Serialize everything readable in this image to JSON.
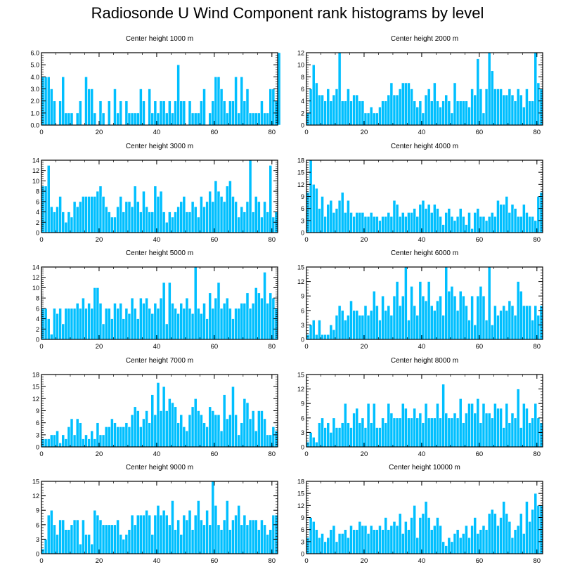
{
  "title": "Radiosonde U Wind Component rank histograms by level",
  "style": {
    "bar_color": "#00BFFF",
    "bar_edge": "#ffffff",
    "axis_color": "#000000"
  },
  "chart_data": [
    {
      "type": "bar",
      "title": "Center height 1000 m",
      "xlabel": "",
      "ylabel": "",
      "xlim": [
        0,
        82
      ],
      "ylim": [
        0,
        6
      ],
      "yticks": [
        0,
        1,
        2,
        3,
        4,
        5,
        6
      ],
      "ytick_labels": [
        "0.0",
        "1.0",
        "2.0",
        "3.0",
        "4.0",
        "5.0",
        "6.0"
      ],
      "xticks": [
        0,
        20,
        40,
        60,
        80
      ],
      "xtick_labels": [
        "0",
        "20",
        "40",
        "60",
        "80"
      ],
      "values": [
        4,
        4,
        4,
        3,
        2,
        0,
        2,
        4,
        1,
        1,
        1,
        0,
        1,
        2,
        0,
        4,
        3,
        3,
        1,
        0,
        2,
        1,
        0,
        2,
        0,
        3,
        1,
        2,
        0,
        2,
        1,
        1,
        1,
        1,
        3,
        2,
        0,
        3,
        1,
        2,
        1,
        2,
        2,
        1,
        2,
        1,
        2,
        5,
        2,
        2,
        0,
        2,
        1,
        1,
        1,
        2,
        3,
        0,
        1,
        2,
        4,
        4,
        3,
        2,
        1,
        2,
        2,
        4,
        1,
        4,
        2,
        3,
        1,
        1,
        1,
        1,
        2,
        1,
        1,
        3,
        3,
        2,
        6
      ]
    },
    {
      "type": "bar",
      "title": "Center height 2000 m",
      "xlabel": "",
      "ylabel": "",
      "xlim": [
        0,
        82
      ],
      "ylim": [
        0,
        12
      ],
      "yticks": [
        0,
        2,
        4,
        6,
        8,
        10,
        12
      ],
      "ytick_labels": [
        "0",
        "2",
        "4",
        "6",
        "8",
        "10",
        "12"
      ],
      "xticks": [
        0,
        20,
        40,
        60,
        80
      ],
      "xtick_labels": [
        "0",
        "20",
        "40",
        "60",
        "80"
      ],
      "values": [
        2,
        6,
        10,
        7,
        5,
        5,
        4,
        6,
        4,
        5,
        6,
        12,
        4,
        4,
        6,
        4,
        5,
        5,
        4,
        4,
        2,
        2,
        3,
        2,
        2,
        3,
        4,
        4,
        5,
        7,
        5,
        5,
        6,
        7,
        7,
        7,
        6,
        4,
        3,
        4,
        2,
        5,
        6,
        4,
        7,
        4,
        3,
        4,
        5,
        4,
        2,
        7,
        4,
        4,
        4,
        4,
        3,
        6,
        5,
        11,
        6,
        2,
        6,
        12,
        9,
        6,
        6,
        6,
        5,
        5,
        6,
        5,
        4,
        6,
        5,
        3,
        6,
        4,
        4,
        12,
        7,
        6
      ]
    },
    {
      "type": "bar",
      "title": "Center height 3000 m",
      "xlabel": "",
      "ylabel": "",
      "xlim": [
        0,
        82
      ],
      "ylim": [
        0,
        14
      ],
      "yticks": [
        0,
        2,
        4,
        6,
        8,
        10,
        12,
        14
      ],
      "ytick_labels": [
        "0",
        "2",
        "4",
        "6",
        "8",
        "10",
        "12",
        "14"
      ],
      "xticks": [
        0,
        20,
        40,
        60,
        80
      ],
      "xtick_labels": [
        "0",
        "20",
        "40",
        "60",
        "80"
      ],
      "values": [
        9,
        9,
        13,
        5,
        4,
        5,
        7,
        4,
        2,
        4,
        3,
        6,
        5,
        6,
        7,
        7,
        7,
        7,
        7,
        8,
        9,
        7,
        5,
        4,
        3,
        3,
        5,
        7,
        4,
        6,
        6,
        5,
        9,
        6,
        4,
        8,
        5,
        4,
        4,
        9,
        7,
        8,
        4,
        2,
        4,
        3,
        4,
        5,
        6,
        7,
        4,
        4,
        6,
        5,
        3,
        7,
        5,
        6,
        8,
        6,
        10,
        8,
        7,
        6,
        9,
        10,
        7,
        6,
        3,
        5,
        4,
        6,
        14,
        4,
        7,
        6,
        3,
        6,
        4,
        13,
        3,
        4
      ]
    },
    {
      "type": "bar",
      "title": "Center height 4000 m",
      "xlabel": "",
      "ylabel": "",
      "xlim": [
        0,
        82
      ],
      "ylim": [
        0,
        18
      ],
      "yticks": [
        0,
        3,
        6,
        9,
        12,
        15,
        18
      ],
      "ytick_labels": [
        "0",
        "3",
        "6",
        "9",
        "12",
        "15",
        "18"
      ],
      "xticks": [
        0,
        20,
        40,
        60,
        80
      ],
      "xtick_labels": [
        "0",
        "20",
        "40",
        "60",
        "80"
      ],
      "values": [
        10,
        18,
        12,
        11,
        6,
        9,
        4,
        7,
        8,
        5,
        6,
        8,
        10,
        5,
        8,
        5,
        4,
        5,
        5,
        5,
        4,
        4,
        5,
        4,
        4,
        3,
        4,
        4,
        5,
        4,
        8,
        7,
        4,
        5,
        4,
        5,
        5,
        6,
        4,
        7,
        8,
        6,
        7,
        5,
        7,
        6,
        4,
        2,
        5,
        6,
        4,
        3,
        4,
        6,
        4,
        2,
        5,
        1,
        5,
        6,
        4,
        4,
        3,
        4,
        5,
        4,
        8,
        7,
        7,
        9,
        5,
        7,
        6,
        4,
        4,
        7,
        5,
        4,
        4,
        3,
        9,
        10
      ]
    },
    {
      "type": "bar",
      "title": "Center height 5000 m",
      "xlabel": "",
      "ylabel": "",
      "xlim": [
        0,
        82
      ],
      "ylim": [
        0,
        14
      ],
      "yticks": [
        0,
        2,
        4,
        6,
        8,
        10,
        12,
        14
      ],
      "ytick_labels": [
        "0",
        "2",
        "4",
        "6",
        "8",
        "10",
        "12",
        "14"
      ],
      "xticks": [
        0,
        20,
        40,
        60,
        80
      ],
      "xtick_labels": [
        "0",
        "20",
        "40",
        "60",
        "80"
      ],
      "values": [
        6,
        6,
        4,
        1,
        6,
        5,
        6,
        3,
        6,
        6,
        6,
        6,
        7,
        6,
        8,
        6,
        7,
        6,
        10,
        10,
        7,
        3,
        6,
        6,
        4,
        7,
        6,
        7,
        4,
        6,
        5,
        8,
        6,
        4,
        8,
        7,
        8,
        6,
        5,
        7,
        6,
        8,
        11,
        3,
        11,
        7,
        6,
        5,
        7,
        6,
        8,
        6,
        5,
        14,
        6,
        5,
        7,
        4,
        9,
        6,
        8,
        11,
        6,
        7,
        8,
        6,
        4,
        6,
        6,
        7,
        7,
        9,
        6,
        7,
        10,
        9,
        8,
        13,
        7,
        9,
        8,
        6
      ]
    },
    {
      "type": "bar",
      "title": "Center height 6000 m",
      "xlabel": "",
      "ylabel": "",
      "xlim": [
        0,
        82
      ],
      "ylim": [
        0,
        15
      ],
      "yticks": [
        0,
        3,
        6,
        9,
        12,
        15
      ],
      "ytick_labels": [
        "0",
        "3",
        "6",
        "9",
        "12",
        "15"
      ],
      "xticks": [
        0,
        20,
        40,
        60,
        80
      ],
      "xtick_labels": [
        "0",
        "20",
        "40",
        "60",
        "80"
      ],
      "values": [
        1,
        3,
        4,
        1,
        4,
        1,
        1,
        1,
        3,
        2,
        5,
        7,
        6,
        4,
        5,
        8,
        6,
        6,
        5,
        5,
        7,
        5,
        6,
        10,
        7,
        4,
        9,
        6,
        7,
        5,
        9,
        12,
        7,
        9,
        15,
        4,
        11,
        7,
        5,
        12,
        9,
        8,
        12,
        7,
        6,
        8,
        9,
        5,
        15,
        10,
        11,
        9,
        6,
        10,
        9,
        7,
        4,
        9,
        3,
        9,
        11,
        9,
        4,
        15,
        3,
        7,
        5,
        6,
        7,
        6,
        8,
        7,
        5,
        12,
        10,
        7,
        7,
        7,
        4,
        7,
        5,
        7
      ]
    },
    {
      "type": "bar",
      "title": "Center height 7000 m",
      "xlabel": "",
      "ylabel": "",
      "xlim": [
        0,
        82
      ],
      "ylim": [
        0,
        18
      ],
      "yticks": [
        0,
        3,
        6,
        9,
        12,
        15,
        18
      ],
      "ytick_labels": [
        "0",
        "3",
        "6",
        "9",
        "12",
        "15",
        "18"
      ],
      "xticks": [
        0,
        20,
        40,
        60,
        80
      ],
      "xtick_labels": [
        "0",
        "20",
        "40",
        "60",
        "80"
      ],
      "values": [
        2,
        2,
        2,
        3,
        3,
        4,
        1,
        3,
        2,
        5,
        7,
        3,
        7,
        6,
        2,
        3,
        2,
        4,
        2,
        6,
        3,
        3,
        5,
        5,
        7,
        6,
        5,
        5,
        5,
        6,
        5,
        8,
        10,
        9,
        5,
        7,
        9,
        6,
        13,
        8,
        16,
        9,
        15,
        9,
        12,
        11,
        10,
        6,
        8,
        5,
        4,
        8,
        10,
        12,
        9,
        8,
        6,
        5,
        10,
        9,
        8,
        8,
        4,
        13,
        7,
        8,
        15,
        8,
        3,
        6,
        12,
        11,
        7,
        9,
        4,
        9,
        9,
        7,
        3,
        3,
        5,
        4
      ]
    },
    {
      "type": "bar",
      "title": "Center height 8000 m",
      "xlabel": "",
      "ylabel": "",
      "xlim": [
        0,
        82
      ],
      "ylim": [
        0,
        15
      ],
      "yticks": [
        0,
        3,
        6,
        9,
        12,
        15
      ],
      "ytick_labels": [
        "0",
        "3",
        "6",
        "9",
        "12",
        "15"
      ],
      "xticks": [
        0,
        20,
        40,
        60,
        80
      ],
      "xtick_labels": [
        "0",
        "20",
        "40",
        "60",
        "80"
      ],
      "values": [
        1,
        3,
        2,
        1,
        5,
        6,
        4,
        5,
        3,
        6,
        4,
        4,
        5,
        9,
        5,
        4,
        7,
        8,
        5,
        6,
        4,
        9,
        5,
        9,
        4,
        4,
        6,
        5,
        9,
        7,
        6,
        6,
        6,
        9,
        8,
        6,
        6,
        8,
        6,
        7,
        5,
        9,
        6,
        6,
        6,
        9,
        6,
        13,
        7,
        6,
        6,
        7,
        6,
        10,
        5,
        7,
        9,
        9,
        7,
        10,
        5,
        9,
        7,
        7,
        6,
        9,
        8,
        8,
        4,
        9,
        5,
        7,
        6,
        12,
        4,
        9,
        8,
        5,
        6,
        9,
        6,
        5
      ]
    },
    {
      "type": "bar",
      "title": "Center height 9000 m",
      "xlabel": "",
      "ylabel": "",
      "xlim": [
        0,
        82
      ],
      "ylim": [
        0,
        15
      ],
      "yticks": [
        0,
        3,
        6,
        9,
        12,
        15
      ],
      "ytick_labels": [
        "0",
        "3",
        "6",
        "9",
        "12",
        "15"
      ],
      "xticks": [
        0,
        20,
        40,
        60,
        80
      ],
      "xtick_labels": [
        "0",
        "20",
        "40",
        "60",
        "80"
      ],
      "values": [
        1,
        3,
        8,
        9,
        6,
        4,
        7,
        7,
        5,
        5,
        6,
        7,
        7,
        2,
        7,
        4,
        4,
        2,
        9,
        8,
        7,
        6,
        6,
        6,
        6,
        6,
        7,
        4,
        3,
        4,
        5,
        8,
        6,
        8,
        8,
        8,
        9,
        8,
        4,
        8,
        10,
        8,
        9,
        8,
        6,
        11,
        5,
        7,
        4,
        8,
        7,
        9,
        5,
        8,
        11,
        7,
        6,
        9,
        6,
        15,
        10,
        6,
        5,
        7,
        11,
        5,
        7,
        8,
        10,
        6,
        8,
        6,
        7,
        7,
        7,
        5,
        7,
        6,
        4,
        5,
        8,
        8
      ]
    },
    {
      "type": "bar",
      "title": "Center height 10000 m",
      "xlabel": "",
      "ylabel": "",
      "xlim": [
        0,
        82
      ],
      "ylim": [
        0,
        18
      ],
      "yticks": [
        0,
        3,
        6,
        9,
        12,
        15,
        18
      ],
      "ytick_labels": [
        "0",
        "3",
        "6",
        "9",
        "12",
        "15",
        "18"
      ],
      "xticks": [
        0,
        20,
        40,
        60,
        80
      ],
      "xtick_labels": [
        "0",
        "20",
        "40",
        "60",
        "80"
      ],
      "values": [
        4,
        9,
        8,
        6,
        4,
        5,
        3,
        4,
        6,
        7,
        3,
        5,
        5,
        6,
        4,
        7,
        6,
        6,
        8,
        7,
        7,
        5,
        7,
        6,
        6,
        7,
        6,
        9,
        6,
        7,
        8,
        7,
        10,
        5,
        8,
        6,
        9,
        12,
        4,
        9,
        10,
        13,
        9,
        6,
        7,
        9,
        7,
        3,
        2,
        4,
        3,
        5,
        6,
        4,
        5,
        7,
        4,
        7,
        9,
        5,
        6,
        7,
        6,
        10,
        11,
        10,
        7,
        9,
        13,
        10,
        8,
        4,
        6,
        7,
        10,
        5,
        13,
        8,
        11,
        15,
        12,
        12
      ]
    }
  ]
}
